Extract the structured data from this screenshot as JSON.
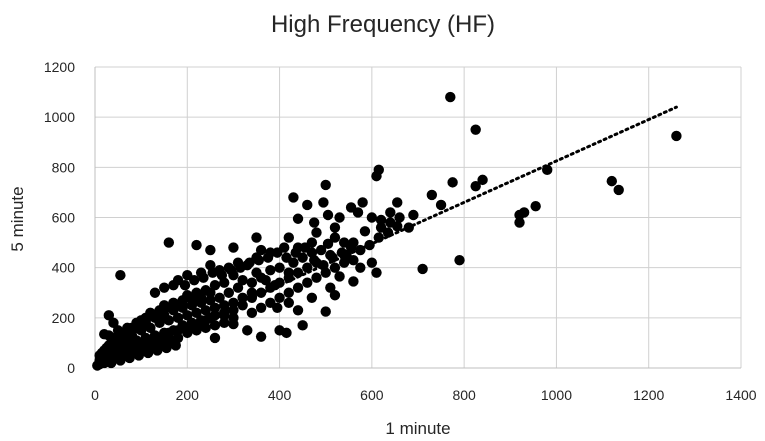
{
  "chart_data": {
    "type": "scatter",
    "title": "High Frequency (HF)",
    "xlabel": "1 minute",
    "ylabel": "5 minute",
    "xlim": [
      0,
      1400
    ],
    "ylim": [
      0,
      1200
    ],
    "xticks": [
      0,
      200,
      400,
      600,
      800,
      1000,
      1200,
      1400
    ],
    "yticks": [
      0,
      200,
      400,
      600,
      800,
      1000,
      1200
    ],
    "grid": true,
    "marker_color": "#000000",
    "trendline": {
      "style": "dotted",
      "color": "#000000",
      "x": [
        0,
        1260
      ],
      "y": [
        0,
        1040
      ]
    },
    "series": [
      {
        "points": [
          [
            770,
            1080
          ],
          [
            825,
            950
          ],
          [
            1260,
            925
          ],
          [
            980,
            790
          ],
          [
            840,
            750
          ],
          [
            825,
            725
          ],
          [
            775,
            740
          ],
          [
            730,
            690
          ],
          [
            750,
            650
          ],
          [
            1120,
            745
          ],
          [
            1135,
            710
          ],
          [
            955,
            645
          ],
          [
            930,
            620
          ],
          [
            920,
            610
          ],
          [
            920,
            580
          ],
          [
            710,
            395
          ],
          [
            790,
            430
          ],
          [
            615,
            790
          ],
          [
            610,
            765
          ],
          [
            500,
            730
          ],
          [
            430,
            680
          ],
          [
            460,
            650
          ],
          [
            495,
            660
          ],
          [
            555,
            640
          ],
          [
            570,
            620
          ],
          [
            505,
            610
          ],
          [
            530,
            600
          ],
          [
            440,
            595
          ],
          [
            475,
            580
          ],
          [
            600,
            600
          ],
          [
            620,
            590
          ],
          [
            640,
            580
          ],
          [
            655,
            565
          ],
          [
            680,
            560
          ],
          [
            690,
            610
          ],
          [
            655,
            660
          ],
          [
            580,
            660
          ],
          [
            520,
            560
          ],
          [
            480,
            540
          ],
          [
            420,
            520
          ],
          [
            350,
            520
          ],
          [
            360,
            470
          ],
          [
            300,
            480
          ],
          [
            250,
            470
          ],
          [
            540,
            500
          ],
          [
            505,
            495
          ],
          [
            545,
            450
          ],
          [
            560,
            430
          ],
          [
            600,
            420
          ],
          [
            610,
            380
          ],
          [
            575,
            400
          ],
          [
            530,
            365
          ],
          [
            560,
            345
          ],
          [
            510,
            320
          ],
          [
            470,
            280
          ],
          [
            500,
            225
          ],
          [
            520,
            290
          ],
          [
            440,
            230
          ],
          [
            420,
            260
          ],
          [
            395,
            240
          ],
          [
            400,
            150
          ],
          [
            415,
            140
          ],
          [
            450,
            170
          ],
          [
            360,
            125
          ],
          [
            330,
            150
          ],
          [
            300,
            175
          ],
          [
            260,
            120
          ],
          [
            280,
            210
          ],
          [
            220,
            490
          ],
          [
            160,
            500
          ],
          [
            55,
            370
          ],
          [
            30,
            210
          ],
          [
            40,
            180
          ],
          [
            20,
            135
          ],
          [
            640,
            620
          ],
          [
            660,
            600
          ],
          [
            620,
            560
          ],
          [
            585,
            545
          ],
          [
            560,
            500
          ],
          [
            520,
            520
          ],
          [
            470,
            500
          ],
          [
            440,
            480
          ],
          [
            410,
            480
          ],
          [
            380,
            460
          ],
          [
            350,
            440
          ],
          [
            330,
            410
          ],
          [
            310,
            420
          ],
          [
            290,
            400
          ],
          [
            270,
            390
          ],
          [
            250,
            410
          ],
          [
            230,
            380
          ],
          [
            200,
            370
          ],
          [
            180,
            350
          ],
          [
            170,
            330
          ],
          [
            150,
            320
          ],
          [
            130,
            300
          ],
          [
            300,
            370
          ],
          [
            320,
            350
          ],
          [
            280,
            340
          ],
          [
            260,
            330
          ],
          [
            240,
            310
          ],
          [
            220,
            300
          ],
          [
            200,
            290
          ],
          [
            190,
            270
          ],
          [
            170,
            260
          ],
          [
            150,
            250
          ],
          [
            140,
            230
          ],
          [
            120,
            220
          ],
          [
            110,
            200
          ],
          [
            100,
            190
          ],
          [
            90,
            170
          ],
          [
            80,
            160
          ],
          [
            70,
            150
          ],
          [
            60,
            140
          ],
          [
            50,
            130
          ],
          [
            40,
            110
          ],
          [
            30,
            90
          ],
          [
            20,
            70
          ],
          [
            10,
            50
          ],
          [
            350,
            380
          ],
          [
            370,
            350
          ],
          [
            390,
            330
          ],
          [
            340,
            300
          ],
          [
            320,
            280
          ],
          [
            300,
            260
          ],
          [
            280,
            250
          ],
          [
            260,
            240
          ],
          [
            240,
            230
          ],
          [
            220,
            220
          ],
          [
            200,
            210
          ],
          [
            180,
            200
          ],
          [
            160,
            190
          ],
          [
            140,
            180
          ],
          [
            120,
            160
          ],
          [
            100,
            150
          ],
          [
            80,
            130
          ],
          [
            60,
            110
          ],
          [
            40,
            90
          ],
          [
            30,
            70
          ],
          [
            20,
            50
          ],
          [
            10,
            30
          ],
          [
            400,
            400
          ],
          [
            420,
            380
          ],
          [
            380,
            390
          ],
          [
            360,
            360
          ],
          [
            340,
            340
          ],
          [
            310,
            320
          ],
          [
            290,
            300
          ],
          [
            270,
            280
          ],
          [
            250,
            270
          ],
          [
            230,
            260
          ],
          [
            210,
            250
          ],
          [
            190,
            240
          ],
          [
            170,
            230
          ],
          [
            150,
            210
          ],
          [
            130,
            200
          ],
          [
            110,
            180
          ],
          [
            90,
            160
          ],
          [
            70,
            140
          ],
          [
            50,
            120
          ],
          [
            35,
            100
          ],
          [
            25,
            80
          ],
          [
            15,
            60
          ],
          [
            250,
            300
          ],
          [
            230,
            280
          ],
          [
            210,
            270
          ],
          [
            190,
            250
          ],
          [
            170,
            240
          ],
          [
            150,
            230
          ],
          [
            130,
            210
          ],
          [
            110,
            190
          ],
          [
            90,
            180
          ],
          [
            70,
            160
          ],
          [
            50,
            150
          ],
          [
            30,
            130
          ],
          [
            250,
            200
          ],
          [
            230,
            190
          ],
          [
            210,
            180
          ],
          [
            190,
            170
          ],
          [
            170,
            150
          ],
          [
            150,
            140
          ],
          [
            130,
            130
          ],
          [
            110,
            120
          ],
          [
            90,
            110
          ],
          [
            70,
            100
          ],
          [
            50,
            80
          ],
          [
            30,
            60
          ],
          [
            320,
            250
          ],
          [
            300,
            230
          ],
          [
            280,
            220
          ],
          [
            260,
            210
          ],
          [
            240,
            190
          ],
          [
            220,
            170
          ],
          [
            200,
            160
          ],
          [
            180,
            150
          ],
          [
            160,
            140
          ],
          [
            140,
            120
          ],
          [
            120,
            100
          ],
          [
            100,
            90
          ],
          [
            80,
            80
          ],
          [
            60,
            70
          ],
          [
            40,
            60
          ],
          [
            20,
            40
          ],
          [
            15,
            25
          ],
          [
            25,
            30
          ],
          [
            45,
            45
          ],
          [
            65,
            55
          ],
          [
            85,
            65
          ],
          [
            105,
            75
          ],
          [
            125,
            85
          ],
          [
            145,
            95
          ],
          [
            165,
            110
          ],
          [
            340,
            220
          ],
          [
            360,
            240
          ],
          [
            380,
            260
          ],
          [
            400,
            280
          ],
          [
            420,
            300
          ],
          [
            440,
            320
          ],
          [
            460,
            340
          ],
          [
            480,
            360
          ],
          [
            500,
            380
          ],
          [
            520,
            400
          ],
          [
            540,
            420
          ],
          [
            430,
            420
          ],
          [
            450,
            440
          ],
          [
            470,
            460
          ],
          [
            490,
            470
          ],
          [
            510,
            450
          ],
          [
            480,
            420
          ],
          [
            460,
            400
          ],
          [
            440,
            380
          ],
          [
            420,
            360
          ],
          [
            400,
            340
          ],
          [
            380,
            320
          ],
          [
            360,
            300
          ],
          [
            340,
            280
          ],
          [
            300,
            200
          ],
          [
            280,
            180
          ],
          [
            260,
            170
          ],
          [
            240,
            160
          ],
          [
            220,
            150
          ],
          [
            200,
            140
          ],
          [
            180,
            120
          ],
          [
            160,
            110
          ],
          [
            140,
            100
          ],
          [
            120,
            80
          ],
          [
            100,
            70
          ],
          [
            80,
            60
          ],
          [
            60,
            50
          ],
          [
            40,
            40
          ],
          [
            20,
            20
          ],
          [
            10,
            15
          ],
          [
            5,
            10
          ],
          [
            35,
            20
          ],
          [
            55,
            30
          ],
          [
            75,
            40
          ],
          [
            95,
            50
          ],
          [
            115,
            60
          ],
          [
            135,
            70
          ],
          [
            155,
            80
          ],
          [
            175,
            90
          ],
          [
            195,
            330
          ],
          [
            215,
            350
          ],
          [
            235,
            360
          ],
          [
            255,
            380
          ],
          [
            275,
            370
          ],
          [
            295,
            390
          ],
          [
            315,
            400
          ],
          [
            335,
            420
          ],
          [
            355,
            430
          ],
          [
            375,
            440
          ],
          [
            395,
            460
          ],
          [
            415,
            440
          ],
          [
            435,
            460
          ],
          [
            455,
            480
          ],
          [
            475,
            430
          ],
          [
            495,
            410
          ],
          [
            515,
            440
          ],
          [
            535,
            460
          ],
          [
            555,
            480
          ],
          [
            575,
            470
          ],
          [
            595,
            490
          ],
          [
            615,
            520
          ],
          [
            635,
            540
          ]
        ]
      }
    ]
  }
}
